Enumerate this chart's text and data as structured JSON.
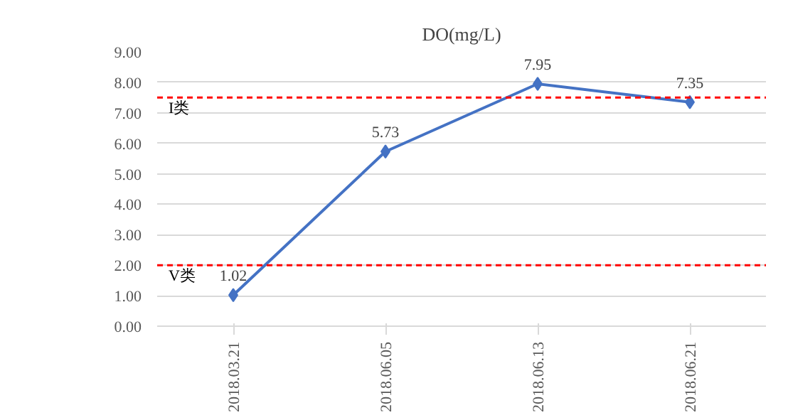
{
  "chart_data": {
    "type": "line",
    "title": "DO(mg/L)",
    "categories": [
      "2018.03.21",
      "2018.06.05",
      "2018.06.13",
      "2018.06.21"
    ],
    "series": [
      {
        "color": "#4472c4",
        "values": [
          1.02,
          5.73,
          7.95,
          7.35
        ]
      }
    ],
    "ylim": [
      0,
      9
    ],
    "yticks": [
      {
        "value": 0,
        "label": "0.00"
      },
      {
        "value": 1,
        "label": "1.00"
      },
      {
        "value": 2,
        "label": "2.00"
      },
      {
        "value": 3,
        "label": "3.00"
      },
      {
        "value": 4,
        "label": "4.00"
      },
      {
        "value": 5,
        "label": "5.00"
      },
      {
        "value": 6,
        "label": "6.00"
      },
      {
        "value": 7,
        "label": "7.00"
      },
      {
        "value": 8,
        "label": "8.00"
      },
      {
        "value": 9,
        "label": "9.00"
      }
    ],
    "grid": "y",
    "marker": "diamond",
    "line_style": "solid",
    "data_labels": true,
    "ref_lines": [
      {
        "axis": "y",
        "value": 7.5,
        "label": "I类",
        "color": "#ff0000",
        "line_style": "dashed"
      },
      {
        "axis": "y",
        "value": 2,
        "label": "V类",
        "color": "#ff0000",
        "line_style": "dashed"
      }
    ]
  }
}
